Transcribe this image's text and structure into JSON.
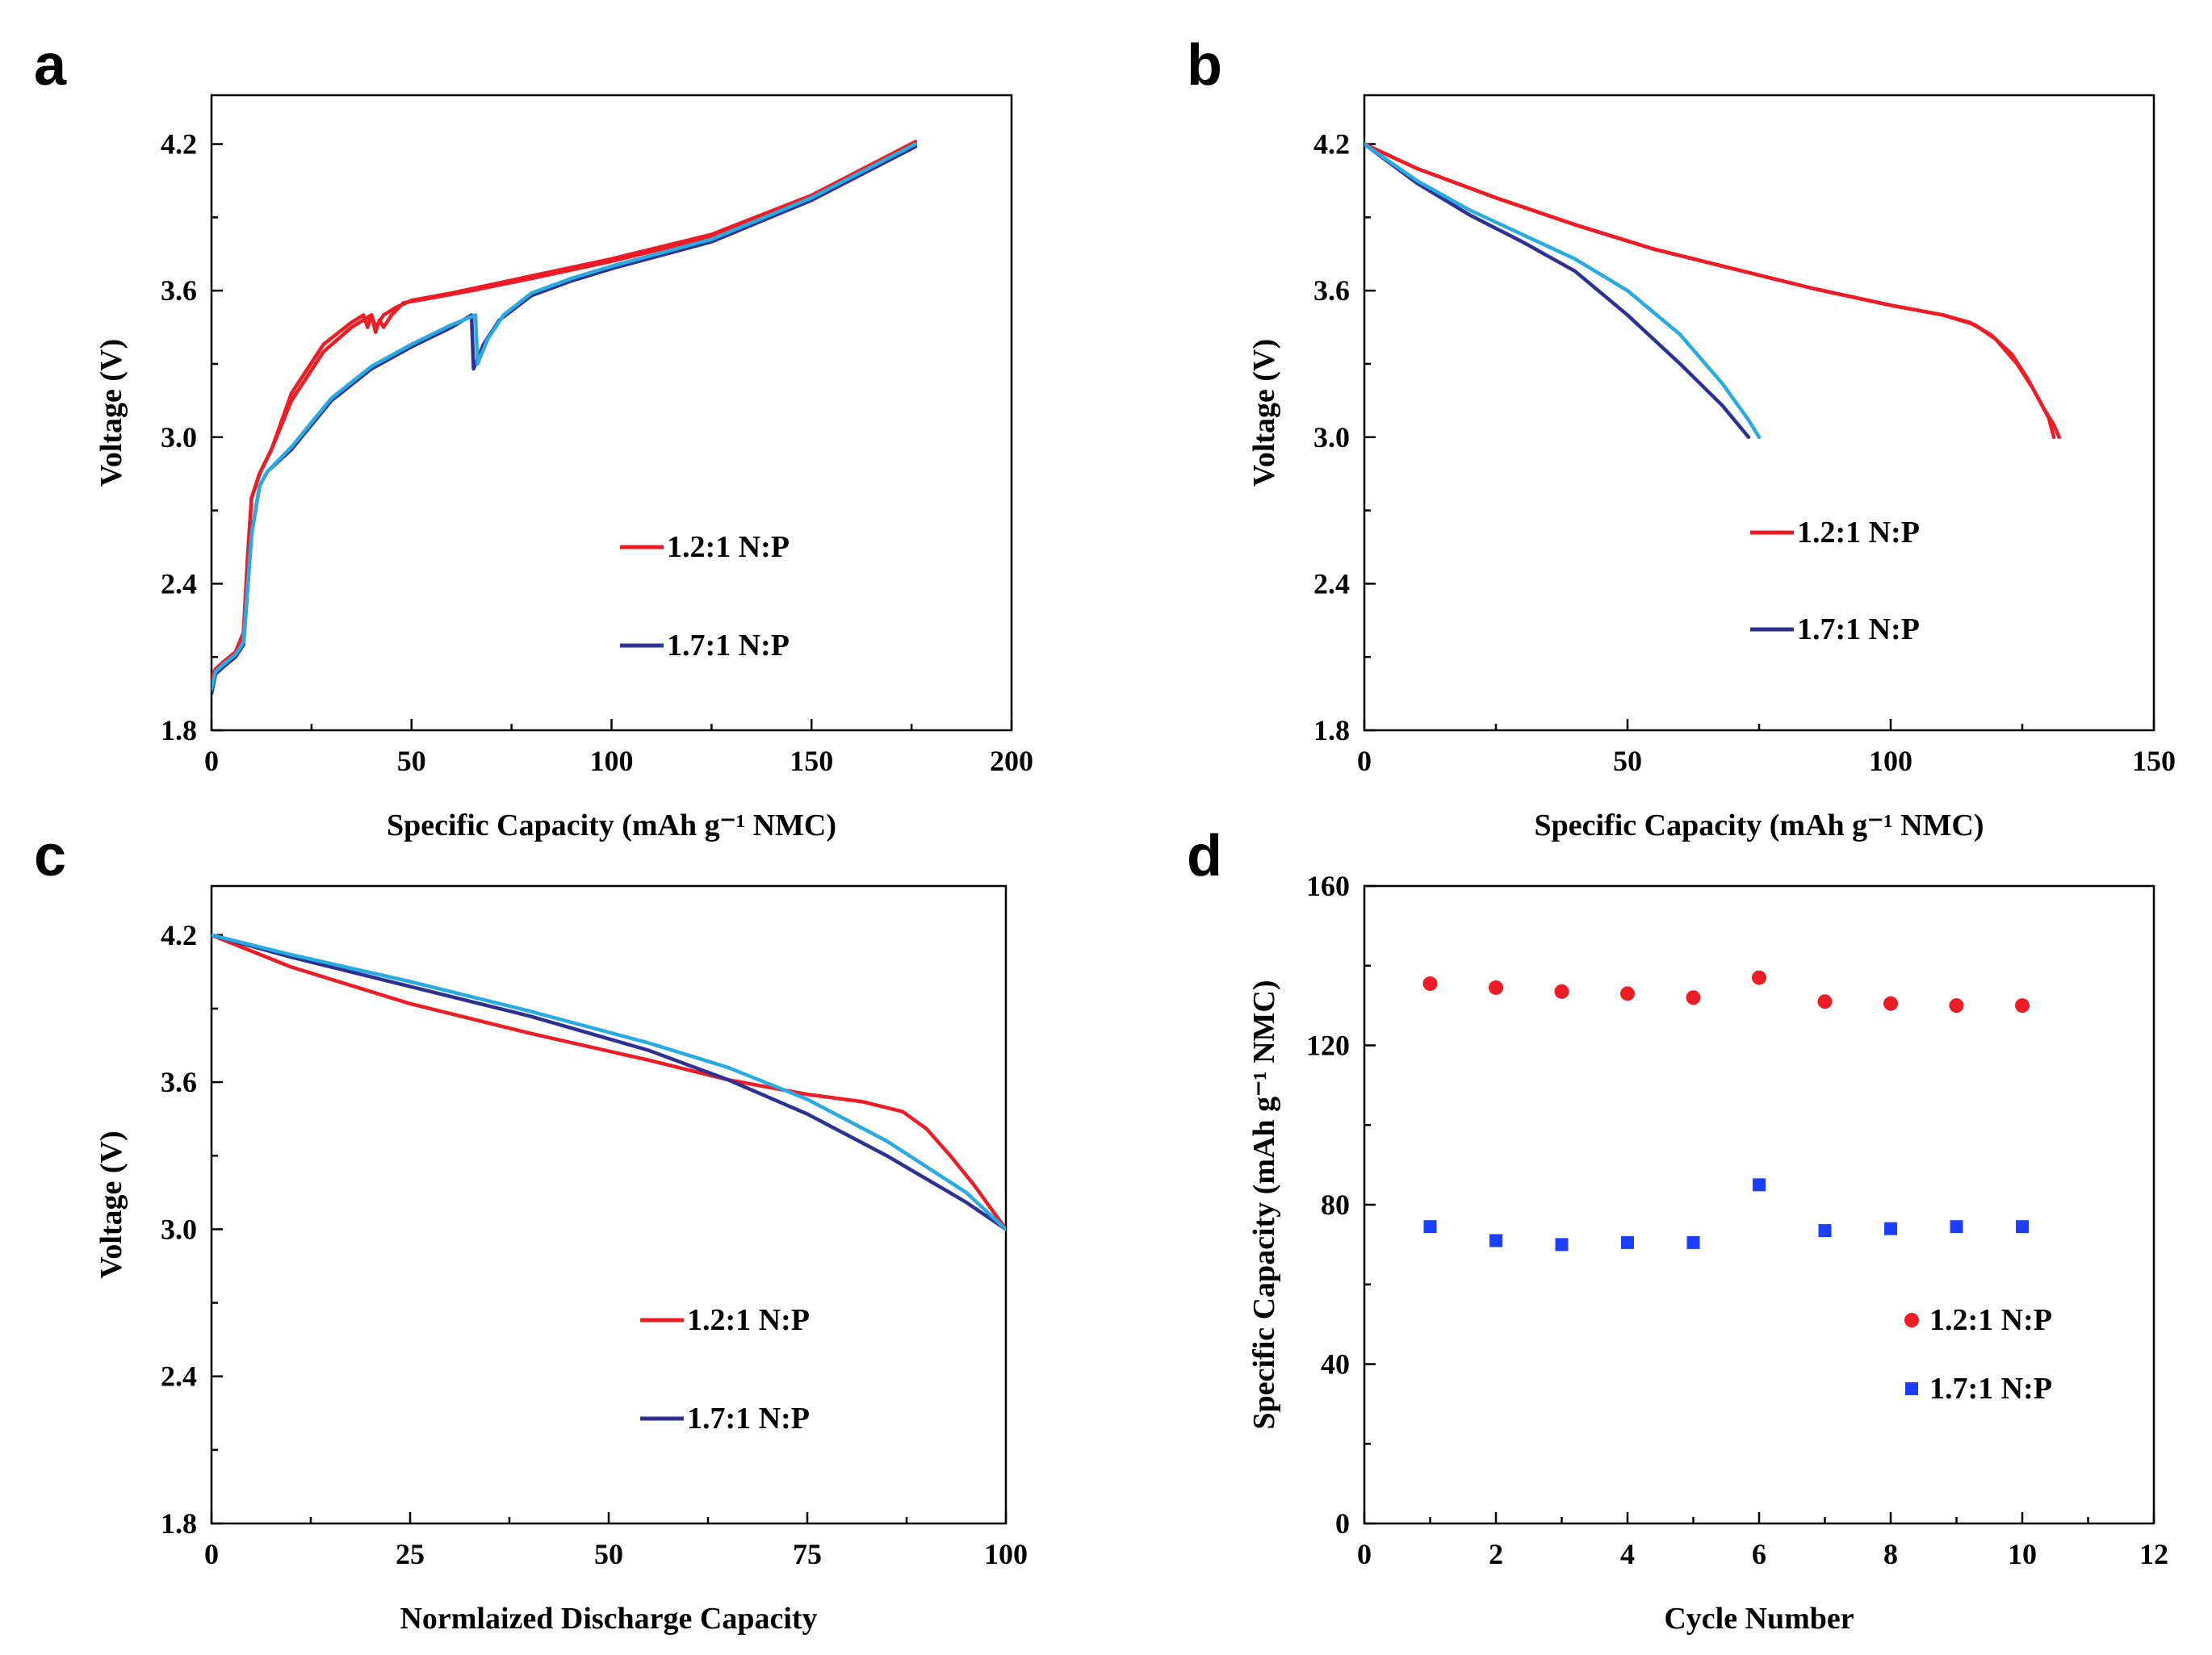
{
  "chart_data": [
    {
      "panel": "a",
      "type": "line",
      "title": "",
      "xlabel": "Specific Capacity (mAh g⁻¹ NMC)",
      "ylabel": "Voltage (V)",
      "xlim": [
        0,
        200
      ],
      "ylim": [
        1.8,
        4.4
      ],
      "xticks": [
        0,
        50,
        100,
        150,
        200
      ],
      "yticks": [
        1.8,
        2.4,
        3.0,
        3.6,
        4.2
      ],
      "legend_position": "center-right",
      "series": [
        {
          "name": "1.2:1 N:P",
          "color": "#ee1c24",
          "x": [
            0,
            1,
            3,
            6,
            8,
            9,
            10,
            12,
            15,
            20,
            28,
            35,
            40,
            41,
            42,
            43,
            45,
            48,
            55,
            65,
            80,
            100,
            125,
            150,
            176
          ],
          "y": [
            2.0,
            2.05,
            2.08,
            2.12,
            2.2,
            2.5,
            2.75,
            2.85,
            2.95,
            3.15,
            3.35,
            3.45,
            3.5,
            3.43,
            3.48,
            3.45,
            3.5,
            3.55,
            3.57,
            3.6,
            3.65,
            3.72,
            3.82,
            3.98,
            4.2
          ]
        },
        {
          "name": "1.2:1 N:P",
          "color": "#ee1c24",
          "x": [
            0,
            1,
            3,
            6,
            8,
            9,
            10,
            12,
            15,
            20,
            28,
            35,
            38,
            39,
            40,
            41,
            43,
            46,
            50,
            60,
            80,
            100,
            125,
            150,
            176
          ],
          "y": [
            2.02,
            2.05,
            2.08,
            2.12,
            2.2,
            2.5,
            2.75,
            2.85,
            2.95,
            3.18,
            3.38,
            3.47,
            3.5,
            3.45,
            3.5,
            3.45,
            3.5,
            3.53,
            3.56,
            3.59,
            3.66,
            3.73,
            3.83,
            3.99,
            4.21
          ]
        },
        {
          "name": "1.7:1 N:P",
          "color": "#2e3192",
          "x": [
            0,
            1,
            3,
            6,
            8,
            10,
            12,
            14,
            20,
            30,
            40,
            50,
            60,
            65,
            65.5,
            66,
            68,
            72,
            80,
            90,
            100,
            125,
            150,
            176
          ],
          "y": [
            1.95,
            2.03,
            2.06,
            2.1,
            2.15,
            2.6,
            2.8,
            2.86,
            2.95,
            3.15,
            3.28,
            3.37,
            3.45,
            3.5,
            3.28,
            3.3,
            3.38,
            3.48,
            3.58,
            3.64,
            3.69,
            3.8,
            3.97,
            4.19
          ]
        },
        {
          "name": "1.7:1 N:P",
          "color": "#29abe2",
          "x": [
            0,
            1,
            3,
            6,
            8,
            10,
            12,
            14,
            20,
            30,
            40,
            50,
            60,
            66,
            66.5,
            67,
            69,
            73,
            80,
            90,
            100,
            125,
            150,
            176
          ],
          "y": [
            1.97,
            2.04,
            2.07,
            2.11,
            2.16,
            2.6,
            2.8,
            2.86,
            2.96,
            3.16,
            3.29,
            3.38,
            3.46,
            3.5,
            3.3,
            3.32,
            3.4,
            3.5,
            3.59,
            3.65,
            3.7,
            3.81,
            3.98,
            4.2
          ]
        }
      ],
      "legend": [
        "1.2:1 N:P",
        "1.7:1 N:P"
      ]
    },
    {
      "panel": "b",
      "type": "line",
      "title": "",
      "xlabel": "Specific Capacity (mAh g⁻¹ NMC)",
      "ylabel": "Voltage (V)",
      "xlim": [
        0,
        150
      ],
      "ylim": [
        1.8,
        4.4
      ],
      "xticks": [
        0,
        50,
        100,
        150
      ],
      "yticks": [
        1.8,
        2.4,
        3.0,
        3.6,
        4.2
      ],
      "legend_position": "center-right",
      "series": [
        {
          "name": "1.2:1 N:P",
          "color": "#ee1c24",
          "x": [
            0,
            10,
            25,
            40,
            55,
            70,
            85,
            100,
            110,
            116,
            120,
            124,
            127,
            129,
            131,
            132
          ],
          "y": [
            4.2,
            4.1,
            3.98,
            3.87,
            3.77,
            3.69,
            3.61,
            3.54,
            3.5,
            3.46,
            3.4,
            3.3,
            3.2,
            3.12,
            3.05,
            3.0
          ]
        },
        {
          "name": "1.2:1 N:P",
          "color": "#ee1c24",
          "x": [
            0,
            10,
            25,
            40,
            55,
            70,
            85,
            100,
            110,
            115,
            119,
            123,
            126,
            128,
            130,
            131
          ],
          "y": [
            4.2,
            4.1,
            3.98,
            3.87,
            3.77,
            3.69,
            3.61,
            3.54,
            3.5,
            3.47,
            3.42,
            3.34,
            3.24,
            3.16,
            3.08,
            3.0
          ]
        },
        {
          "name": "1.7:1 N:P",
          "color": "#2e3192",
          "x": [
            0,
            10,
            20,
            30,
            40,
            50,
            60,
            68,
            73
          ],
          "y": [
            4.2,
            4.04,
            3.91,
            3.8,
            3.68,
            3.5,
            3.3,
            3.13,
            3.0
          ]
        },
        {
          "name": "1.7:1 N:P",
          "color": "#29abe2",
          "x": [
            0,
            10,
            20,
            30,
            40,
            50,
            60,
            68,
            73,
            75
          ],
          "y": [
            4.2,
            4.05,
            3.93,
            3.83,
            3.73,
            3.6,
            3.42,
            3.22,
            3.07,
            3.0
          ]
        }
      ],
      "legend": [
        "1.2:1 N:P",
        "1.7:1 N:P"
      ]
    },
    {
      "panel": "c",
      "type": "line",
      "title": "",
      "xlabel": "Normlaized Discharge Capacity",
      "ylabel": "Voltage (V)",
      "xlim": [
        0,
        100
      ],
      "ylim": [
        1.8,
        4.4
      ],
      "xticks": [
        0,
        25,
        50,
        75,
        100
      ],
      "yticks": [
        1.8,
        2.4,
        3.0,
        3.6,
        4.2
      ],
      "legend_position": "center-right",
      "series": [
        {
          "name": "1.2:1 N:P",
          "color": "#ee1c24",
          "x": [
            0,
            10,
            25,
            40,
            55,
            65,
            75,
            82,
            87,
            90,
            93,
            96,
            98,
            100
          ],
          "y": [
            4.2,
            4.07,
            3.92,
            3.8,
            3.69,
            3.61,
            3.55,
            3.52,
            3.48,
            3.41,
            3.3,
            3.18,
            3.09,
            3.0
          ]
        },
        {
          "name": "1.7:1 N:P",
          "color": "#2e3192",
          "x": [
            0,
            10,
            25,
            40,
            55,
            65,
            75,
            85,
            95,
            100
          ],
          "y": [
            4.2,
            4.11,
            3.99,
            3.87,
            3.73,
            3.61,
            3.47,
            3.3,
            3.11,
            3.0
          ]
        },
        {
          "name": "1.7:1 N:P",
          "color": "#29abe2",
          "x": [
            0,
            10,
            25,
            40,
            55,
            65,
            75,
            85,
            95,
            100
          ],
          "y": [
            4.2,
            4.12,
            4.01,
            3.89,
            3.76,
            3.66,
            3.53,
            3.36,
            3.15,
            3.0
          ]
        }
      ],
      "legend": [
        "1.2:1 N:P",
        "1.7:1 N:P"
      ]
    },
    {
      "panel": "d",
      "type": "scatter",
      "title": "",
      "xlabel": "Cycle Number",
      "ylabel": "Specific Capacity (mAh g⁻¹ NMC)",
      "xlim": [
        0,
        12
      ],
      "ylim": [
        0,
        160
      ],
      "xticks": [
        0,
        2,
        4,
        6,
        8,
        10,
        12
      ],
      "yticks": [
        0,
        40,
        80,
        120,
        160
      ],
      "legend_position": "bottom-right",
      "series": [
        {
          "name": "1.2:1 N:P",
          "color": "#ee1c24",
          "marker": "circle",
          "x": [
            1,
            2,
            3,
            4,
            5,
            6,
            7,
            8,
            9,
            10
          ],
          "y": [
            135.5,
            134.5,
            133.5,
            133,
            132,
            137,
            131,
            130.5,
            130,
            130
          ]
        },
        {
          "name": "1.7:1 N:P",
          "color": "#1c3fff",
          "marker": "square",
          "x": [
            1,
            2,
            3,
            4,
            5,
            6,
            7,
            8,
            9,
            10
          ],
          "y": [
            74.5,
            71,
            70,
            70.5,
            70.5,
            85,
            73.5,
            74,
            74.5,
            74.5
          ]
        }
      ],
      "legend": [
        "1.2:1 N:P",
        "1.7:1 N:P"
      ]
    }
  ]
}
